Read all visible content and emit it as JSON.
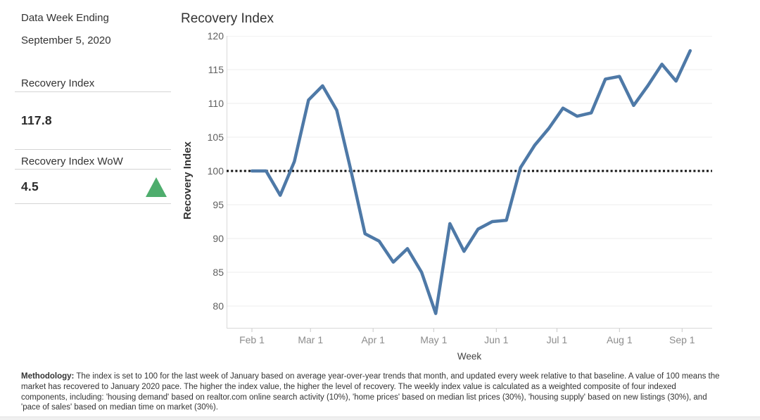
{
  "sidebar": {
    "data_week_label": "Data Week Ending",
    "data_week_value": "September 5, 2020",
    "metrics": [
      {
        "label": "Recovery Index",
        "value": "117.8"
      },
      {
        "label": "Recovery Index WoW",
        "value": "4.5",
        "trend": "up"
      }
    ],
    "trend_up_color": "#4ead6d"
  },
  "chart_data": {
    "type": "line",
    "title": "Recovery Index",
    "xlabel": "Week",
    "ylabel": "Recovery Index",
    "x": [
      "Feb 1",
      "Feb 8",
      "Feb 15",
      "Feb 22",
      "Feb 29",
      "Mar 7",
      "Mar 14",
      "Mar 21",
      "Mar 28",
      "Apr 4",
      "Apr 11",
      "Apr 18",
      "Apr 25",
      "May 2",
      "May 9",
      "May 16",
      "May 23",
      "May 30",
      "Jun 6",
      "Jun 13",
      "Jun 20",
      "Jun 27",
      "Jul 4",
      "Jul 11",
      "Jul 18",
      "Jul 25",
      "Aug 1",
      "Aug 8",
      "Aug 15",
      "Aug 22",
      "Aug 29",
      "Sep 5"
    ],
    "values": [
      100.0,
      100.0,
      96.4,
      101.4,
      110.5,
      112.6,
      109.0,
      100.1,
      90.7,
      89.6,
      86.5,
      88.5,
      85.0,
      78.9,
      92.2,
      88.1,
      91.4,
      92.5,
      92.7,
      100.5,
      103.8,
      106.3,
      109.3,
      108.1,
      108.6,
      113.6,
      114.0,
      109.7,
      112.6,
      115.8,
      113.3,
      117.8
    ],
    "baseline": 100,
    "baseline_color": "#111111",
    "line_color": "#4e79a7",
    "grid": "horizontal",
    "legend": "none",
    "ylim": [
      76.7,
      120
    ],
    "yticks": [
      80,
      85,
      90,
      95,
      100,
      105,
      110,
      115,
      120
    ],
    "xticks": [
      {
        "label": "Feb 1",
        "day": 0
      },
      {
        "label": "Mar 1",
        "day": 29
      },
      {
        "label": "Apr 1",
        "day": 60
      },
      {
        "label": "May 1",
        "day": 90
      },
      {
        "label": "Jun 1",
        "day": 121
      },
      {
        "label": "Jul 1",
        "day": 151
      },
      {
        "label": "Aug 1",
        "day": 182
      },
      {
        "label": "Sep 1",
        "day": 213
      }
    ]
  },
  "footer": {
    "methodology_label": "Methodology:",
    "methodology_text": " The index is set to 100 for the last week of January based on average year-over-year trends that month, and updated every week relative to that baseline. A value of 100 means the market has recovered to January 2020 pace. The higher the index value, the higher the level of recovery. The weekly index value is calculated as a weighted composite of four indexed components, including: 'housing demand' based on realtor.com online search activity (10%), 'home prices' based on median list prices (30%), 'housing supply' based on new listings (30%), and 'pace of sales' based on median time on market (30%)."
  }
}
